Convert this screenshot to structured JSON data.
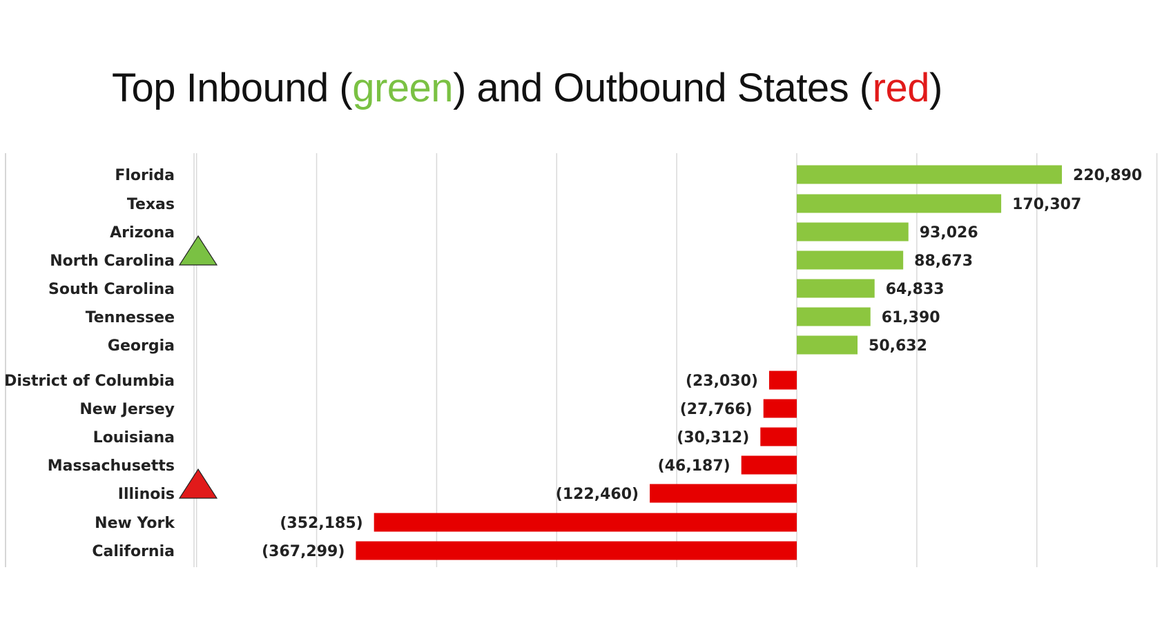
{
  "title": {
    "prefix": "Top Inbound (",
    "green_word": "green",
    "middle": ") and Outbound States (",
    "red_word": "red",
    "suffix": ")"
  },
  "colors": {
    "inbound": "#8cc63f",
    "outbound": "#e60000",
    "gridline": "#d9d9d9",
    "text": "#222222"
  },
  "markers": [
    {
      "category": "North Carolina",
      "color": "#7ac143",
      "shape": "triangle-up"
    },
    {
      "category": "Illinois",
      "color": "#e11a1a",
      "shape": "triangle-up"
    }
  ],
  "chart_data": {
    "type": "bar",
    "orientation": "horizontal",
    "categories": [
      "Florida",
      "Texas",
      "Arizona",
      "North Carolina",
      "South Carolina",
      "Tennessee",
      "Georgia",
      "District of Columbia",
      "New Jersey",
      "Louisiana",
      "Massachusetts",
      "Illinois",
      "New York",
      "California"
    ],
    "values": [
      220890,
      170307,
      93026,
      88673,
      64833,
      61390,
      50632,
      -23030,
      -27766,
      -30312,
      -46187,
      -122460,
      -352185,
      -367299
    ],
    "value_labels": [
      "220,890",
      "170,307",
      "93,026",
      "88,673",
      "64,833",
      "61,390",
      "50,632",
      "(23,030)",
      "(27,766)",
      "(30,312)",
      "(46,187)",
      "(122,460)",
      "(352,185)",
      "(367,299)"
    ],
    "xlim": [
      -500000,
      300000
    ],
    "grid": "vertical",
    "xlabel": "",
    "ylabel": ""
  }
}
